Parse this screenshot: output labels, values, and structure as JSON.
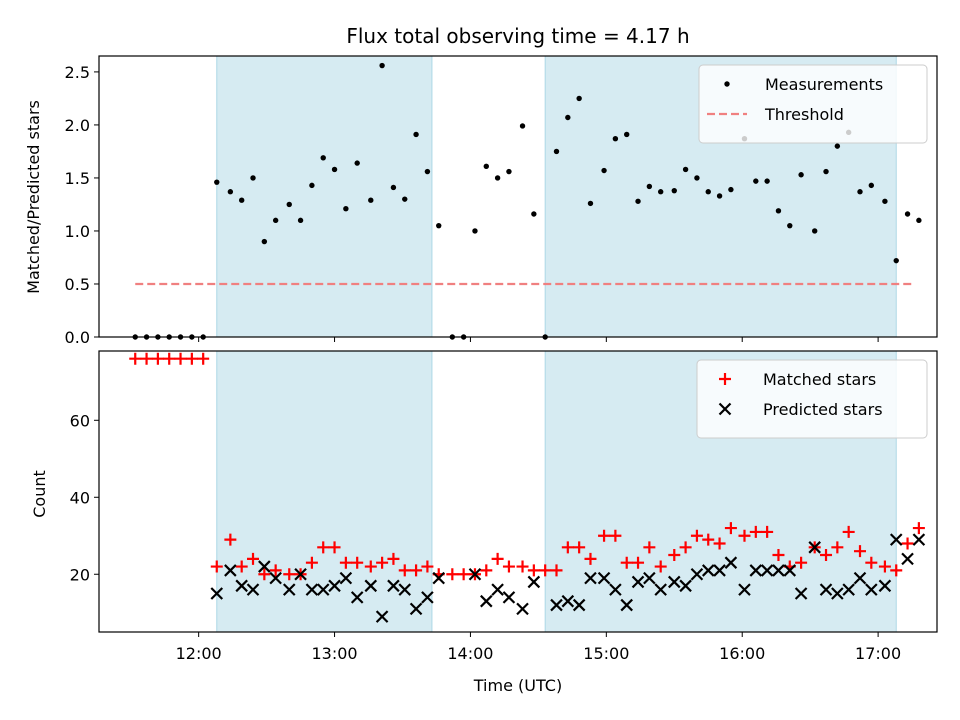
{
  "chart_data": {
    "title": "Flux total observing time = 4.17 h",
    "x_axis": {
      "label": "Time (UTC)",
      "range": [
        "11:16",
        "17:26"
      ],
      "ticks": [
        "12:00",
        "13:00",
        "14:00",
        "15:00",
        "16:00",
        "17:00"
      ]
    },
    "shaded_intervals": [
      {
        "start": "12:08",
        "end": "13:43",
        "color": "#add8e6"
      },
      {
        "start": "14:33",
        "end": "17:08",
        "color": "#add8e6"
      }
    ],
    "panels": [
      {
        "type": "scatter",
        "ylabel": "Matched/Predicted stars",
        "ylim": [
          0,
          2.65
        ],
        "yticks": [
          "0.0",
          "0.5",
          "1.0",
          "1.5",
          "2.0",
          "2.5"
        ],
        "legend": "top-right",
        "series": [
          {
            "name": "Measurements",
            "color": "#000000",
            "marker": "dot",
            "points": [
              [
                "11:32",
                0
              ],
              [
                "11:37",
                0
              ],
              [
                "11:42",
                0
              ],
              [
                "11:47",
                0
              ],
              [
                "11:52",
                0
              ],
              [
                "11:57",
                0
              ],
              [
                "12:02",
                0
              ],
              [
                "12:08",
                1.46
              ],
              [
                "12:14",
                1.37
              ],
              [
                "12:19",
                1.29
              ],
              [
                "12:24",
                1.5
              ],
              [
                "12:29",
                0.9
              ],
              [
                "12:34",
                1.1
              ],
              [
                "12:40",
                1.25
              ],
              [
                "12:45",
                1.1
              ],
              [
                "12:50",
                1.43
              ],
              [
                "12:55",
                1.69
              ],
              [
                "13:00",
                1.58
              ],
              [
                "13:05",
                1.21
              ],
              [
                "13:10",
                1.64
              ],
              [
                "13:16",
                1.29
              ],
              [
                "13:21",
                2.56
              ],
              [
                "13:26",
                1.41
              ],
              [
                "13:31",
                1.3
              ],
              [
                "13:36",
                1.91
              ],
              [
                "13:41",
                1.56
              ],
              [
                "13:46",
                1.05
              ],
              [
                "13:52",
                0
              ],
              [
                "13:57",
                0
              ],
              [
                "14:02",
                1.0
              ],
              [
                "14:07",
                1.61
              ],
              [
                "14:12",
                1.5
              ],
              [
                "14:17",
                1.56
              ],
              [
                "14:23",
                1.99
              ],
              [
                "14:28",
                1.16
              ],
              [
                "14:33",
                0
              ],
              [
                "14:38",
                1.75
              ],
              [
                "14:43",
                2.07
              ],
              [
                "14:48",
                2.25
              ],
              [
                "14:53",
                1.26
              ],
              [
                "14:59",
                1.57
              ],
              [
                "15:04",
                1.87
              ],
              [
                "15:09",
                1.91
              ],
              [
                "15:14",
                1.28
              ],
              [
                "15:19",
                1.42
              ],
              [
                "15:24",
                1.37
              ],
              [
                "15:30",
                1.38
              ],
              [
                "15:35",
                1.58
              ],
              [
                "15:40",
                1.5
              ],
              [
                "15:45",
                1.37
              ],
              [
                "15:50",
                1.33
              ],
              [
                "15:55",
                1.39
              ],
              [
                "16:01",
                1.87
              ],
              [
                "16:06",
                1.47
              ],
              [
                "16:11",
                1.47
              ],
              [
                "16:16",
                1.19
              ],
              [
                "16:21",
                1.05
              ],
              [
                "16:26",
                1.53
              ],
              [
                "16:32",
                1.0
              ],
              [
                "16:37",
                1.56
              ],
              [
                "16:42",
                1.8
              ],
              [
                "16:47",
                1.93
              ],
              [
                "16:52",
                1.37
              ],
              [
                "16:57",
                1.43
              ],
              [
                "17:03",
                1.28
              ],
              [
                "17:08",
                0.72
              ],
              [
                "17:13",
                1.16
              ],
              [
                "17:18",
                1.1
              ]
            ]
          },
          {
            "name": "Threshold",
            "color": "#f08080",
            "style": "dashed",
            "points": [
              [
                "11:32",
                0.5
              ],
              [
                "17:16",
                0.5
              ]
            ]
          }
        ]
      },
      {
        "type": "scatter",
        "ylabel": "Count",
        "ylim": [
          5,
          78
        ],
        "yticks": [
          "20",
          "40",
          "60"
        ],
        "legend": "top-right",
        "series": [
          {
            "name": "Matched stars",
            "color": "#ff0000",
            "marker": "plus",
            "points": [
              [
                "11:32",
                76
              ],
              [
                "11:37",
                76
              ],
              [
                "11:42",
                76
              ],
              [
                "11:47",
                76
              ],
              [
                "11:52",
                76
              ],
              [
                "11:57",
                76
              ],
              [
                "12:02",
                76
              ],
              [
                "12:08",
                22
              ],
              [
                "12:14",
                29
              ],
              [
                "12:19",
                22
              ],
              [
                "12:24",
                24
              ],
              [
                "12:29",
                20
              ],
              [
                "12:34",
                21
              ],
              [
                "12:40",
                20
              ],
              [
                "12:45",
                20
              ],
              [
                "12:50",
                23
              ],
              [
                "12:55",
                27
              ],
              [
                "13:00",
                27
              ],
              [
                "13:05",
                23
              ],
              [
                "13:10",
                23
              ],
              [
                "13:16",
                22
              ],
              [
                "13:21",
                23
              ],
              [
                "13:26",
                24
              ],
              [
                "13:31",
                21
              ],
              [
                "13:36",
                21
              ],
              [
                "13:41",
                22
              ],
              [
                "13:46",
                20
              ],
              [
                "13:52",
                20
              ],
              [
                "13:57",
                20
              ],
              [
                "14:02",
                20
              ],
              [
                "14:07",
                21
              ],
              [
                "14:12",
                24
              ],
              [
                "14:17",
                22
              ],
              [
                "14:23",
                22
              ],
              [
                "14:28",
                21
              ],
              [
                "14:33",
                21
              ],
              [
                "14:38",
                21
              ],
              [
                "14:43",
                27
              ],
              [
                "14:48",
                27
              ],
              [
                "14:53",
                24
              ],
              [
                "14:59",
                30
              ],
              [
                "15:04",
                30
              ],
              [
                "15:09",
                23
              ],
              [
                "15:14",
                23
              ],
              [
                "15:19",
                27
              ],
              [
                "15:24",
                22
              ],
              [
                "15:30",
                25
              ],
              [
                "15:35",
                27
              ],
              [
                "15:40",
                30
              ],
              [
                "15:45",
                29
              ],
              [
                "15:50",
                28
              ],
              [
                "15:55",
                32
              ],
              [
                "16:01",
                30
              ],
              [
                "16:06",
                31
              ],
              [
                "16:11",
                31
              ],
              [
                "16:16",
                25
              ],
              [
                "16:21",
                22
              ],
              [
                "16:26",
                23
              ],
              [
                "16:32",
                27
              ],
              [
                "16:37",
                25
              ],
              [
                "16:42",
                27
              ],
              [
                "16:47",
                31
              ],
              [
                "16:52",
                26
              ],
              [
                "16:57",
                23
              ],
              [
                "17:03",
                22
              ],
              [
                "17:08",
                21
              ],
              [
                "17:13",
                28
              ],
              [
                "17:18",
                32
              ]
            ]
          },
          {
            "name": "Predicted stars",
            "color": "#000000",
            "marker": "x",
            "points": [
              [
                "12:08",
                15
              ],
              [
                "12:14",
                21
              ],
              [
                "12:19",
                17
              ],
              [
                "12:24",
                16
              ],
              [
                "12:29",
                22
              ],
              [
                "12:34",
                19
              ],
              [
                "12:40",
                16
              ],
              [
                "12:45",
                20
              ],
              [
                "12:50",
                16
              ],
              [
                "12:55",
                16
              ],
              [
                "13:00",
                17
              ],
              [
                "13:05",
                19
              ],
              [
                "13:10",
                14
              ],
              [
                "13:16",
                17
              ],
              [
                "13:21",
                9
              ],
              [
                "13:26",
                17
              ],
              [
                "13:31",
                16
              ],
              [
                "13:36",
                11
              ],
              [
                "13:41",
                14
              ],
              [
                "13:46",
                19
              ],
              [
                "14:02",
                20
              ],
              [
                "14:07",
                13
              ],
              [
                "14:12",
                16
              ],
              [
                "14:17",
                14
              ],
              [
                "14:23",
                11
              ],
              [
                "14:28",
                18
              ],
              [
                "14:38",
                12
              ],
              [
                "14:43",
                13
              ],
              [
                "14:48",
                12
              ],
              [
                "14:53",
                19
              ],
              [
                "14:59",
                19
              ],
              [
                "15:04",
                16
              ],
              [
                "15:09",
                12
              ],
              [
                "15:14",
                18
              ],
              [
                "15:19",
                19
              ],
              [
                "15:24",
                16
              ],
              [
                "15:30",
                18
              ],
              [
                "15:35",
                17
              ],
              [
                "15:40",
                20
              ],
              [
                "15:45",
                21
              ],
              [
                "15:50",
                21
              ],
              [
                "15:55",
                23
              ],
              [
                "16:01",
                16
              ],
              [
                "16:06",
                21
              ],
              [
                "16:11",
                21
              ],
              [
                "16:16",
                21
              ],
              [
                "16:21",
                21
              ],
              [
                "16:26",
                15
              ],
              [
                "16:32",
                27
              ],
              [
                "16:37",
                16
              ],
              [
                "16:42",
                15
              ],
              [
                "16:47",
                16
              ],
              [
                "16:52",
                19
              ],
              [
                "16:57",
                16
              ],
              [
                "17:03",
                17
              ],
              [
                "17:08",
                29
              ],
              [
                "17:13",
                24
              ],
              [
                "17:18",
                29
              ]
            ]
          }
        ]
      }
    ]
  }
}
